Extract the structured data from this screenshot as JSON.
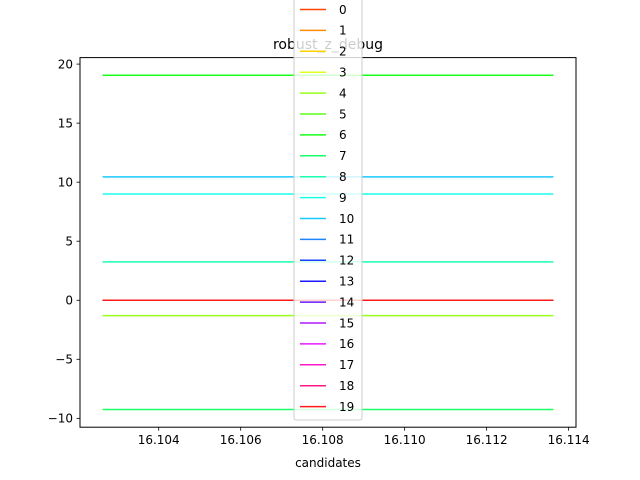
{
  "chart_data": {
    "type": "line",
    "title": "robust_z_debug",
    "xlabel": "candidates",
    "ylabel": "",
    "x": [
      16.10263,
      16.11363
    ],
    "xlim": [
      16.10208,
      16.11418
    ],
    "ylim": [
      -10.75,
      20.55
    ],
    "xticks": [
      16.104,
      16.106,
      16.108,
      16.11,
      16.112,
      16.114
    ],
    "xtick_labels": [
      "16.104",
      "16.106",
      "16.108",
      "16.110",
      "16.112",
      "16.114"
    ],
    "yticks": [
      -10,
      -5,
      0,
      5,
      10,
      15,
      20
    ],
    "ytick_labels": [
      "−10",
      "−5",
      "0",
      "5",
      "10",
      "15",
      "20"
    ],
    "grid": false,
    "legend_position": "upper-center",
    "series": [
      {
        "name": "0",
        "color": "#ff4500",
        "values": [
          0.0,
          0.0
        ]
      },
      {
        "name": "1",
        "color": "#ff8c00",
        "values": [
          0.0,
          0.0
        ]
      },
      {
        "name": "2",
        "color": "#ffd000",
        "values": [
          0.0,
          0.0
        ]
      },
      {
        "name": "3",
        "color": "#e0ff20",
        "values": [
          0.0,
          0.0
        ]
      },
      {
        "name": "4",
        "color": "#9aff1a",
        "values": [
          -1.3,
          -1.3
        ]
      },
      {
        "name": "5",
        "color": "#5cff1a",
        "values": [
          0.0,
          0.0
        ]
      },
      {
        "name": "6",
        "color": "#1aff1a",
        "values": [
          19.05,
          19.05
        ]
      },
      {
        "name": "7",
        "color": "#1aff6a",
        "values": [
          -9.25,
          -9.25
        ]
      },
      {
        "name": "8",
        "color": "#1affb0",
        "values": [
          3.25,
          3.25
        ]
      },
      {
        "name": "9",
        "color": "#1affea",
        "values": [
          9.0,
          9.0
        ]
      },
      {
        "name": "10",
        "color": "#1ac8ff",
        "values": [
          10.45,
          10.45
        ]
      },
      {
        "name": "11",
        "color": "#1a85ff",
        "values": [
          0.0,
          0.0
        ]
      },
      {
        "name": "12",
        "color": "#1a40ff",
        "values": [
          0.0,
          0.0
        ]
      },
      {
        "name": "13",
        "color": "#1a1aff",
        "values": [
          0.0,
          0.0
        ]
      },
      {
        "name": "14",
        "color": "#6a1aff",
        "values": [
          0.0,
          0.0
        ]
      },
      {
        "name": "15",
        "color": "#b01aff",
        "values": [
          0.0,
          0.0
        ]
      },
      {
        "name": "16",
        "color": "#ea1aff",
        "values": [
          0.0,
          0.0
        ]
      },
      {
        "name": "17",
        "color": "#ff1ac8",
        "values": [
          0.0,
          0.0
        ]
      },
      {
        "name": "18",
        "color": "#ff1a85",
        "values": [
          0.0,
          0.0
        ]
      },
      {
        "name": "19",
        "color": "#ff1a1a",
        "values": [
          0.0,
          0.0
        ]
      }
    ]
  }
}
